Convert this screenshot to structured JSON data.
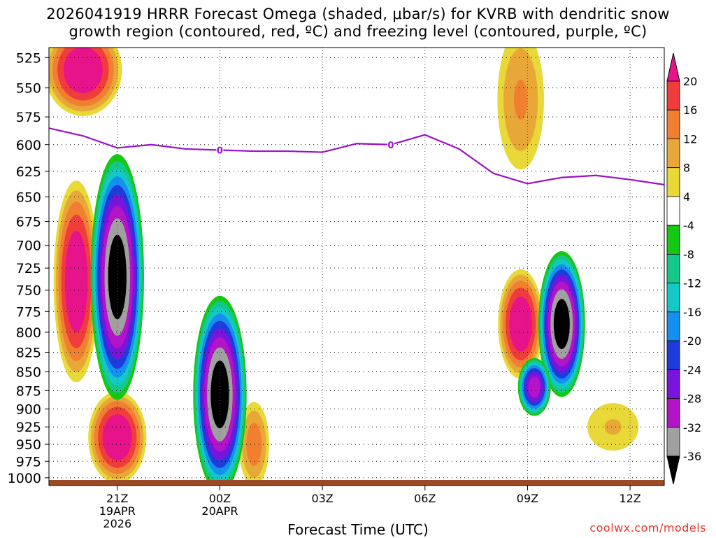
{
  "title": {
    "line1": "2026041919 HRRR Forecast Omega (shaded, μbar/s) for KVRB with dendritic snow",
    "line2": "growth region (contoured, red, ºC) and freezing level (contoured, purple, ºC)"
  },
  "credit": "coolwx.com/models",
  "chart_data": {
    "type": "heatmap",
    "xlabel": "Forecast Time (UTC)",
    "x_ticks": [
      {
        "label": "21Z",
        "sub": [
          "19APR",
          "2026"
        ],
        "hour": 0
      },
      {
        "label": "00Z",
        "sub": [
          "20APR"
        ],
        "hour": 3
      },
      {
        "label": "03Z",
        "sub": [],
        "hour": 6
      },
      {
        "label": "06Z",
        "sub": [],
        "hour": 9
      },
      {
        "label": "09Z",
        "sub": [],
        "hour": 12
      },
      {
        "label": "12Z",
        "sub": [],
        "hour": 15
      }
    ],
    "x_range_hours": [
      -2,
      16
    ],
    "ylabel": "",
    "y_ticks": [
      525,
      550,
      575,
      600,
      625,
      650,
      675,
      700,
      725,
      750,
      775,
      800,
      825,
      850,
      875,
      900,
      925,
      950,
      975,
      1000
    ],
    "ylim": [
      517,
      1012
    ],
    "y_scale": "log-pressure",
    "grid": true,
    "colorbar": {
      "labels": [
        20,
        16,
        12,
        8,
        4,
        -4,
        -8,
        -12,
        -16,
        -20,
        -24,
        -28,
        -32,
        -36
      ],
      "levels": [
        {
          "range": ">20",
          "color": "#e6138a"
        },
        {
          "range": "16 to 20",
          "color": "#f03c3c"
        },
        {
          "range": "12 to 16",
          "color": "#f08030"
        },
        {
          "range": "8 to 12",
          "color": "#e8a838"
        },
        {
          "range": "4 to 8",
          "color": "#e8d838"
        },
        {
          "range": "-4 to 4",
          "color": "#ffffff"
        },
        {
          "range": "-8 to -4",
          "color": "#14c814"
        },
        {
          "range": "-12 to -8",
          "color": "#14c88c"
        },
        {
          "range": "-16 to -12",
          "color": "#14c8c8"
        },
        {
          "range": "-20 to -16",
          "color": "#1490f0"
        },
        {
          "range": "-24 to -20",
          "color": "#1e3cdc"
        },
        {
          "range": "-28 to -24",
          "color": "#7814dc"
        },
        {
          "range": "-32 to -28",
          "color": "#b414c8"
        },
        {
          "range": "-36 to -32",
          "color": "#a0a0a0"
        },
        {
          "range": "<-36",
          "color": "#000000"
        }
      ]
    },
    "freezing_level": {
      "value_label": "0",
      "color": "#9b10c8",
      "points": [
        [
          -2.0,
          585
        ],
        [
          -1.0,
          592
        ],
        [
          0.0,
          603
        ],
        [
          1.0,
          600
        ],
        [
          2.0,
          604
        ],
        [
          3.0,
          605
        ],
        [
          4.0,
          606
        ],
        [
          5.0,
          606
        ],
        [
          6.0,
          607
        ],
        [
          7.0,
          599
        ],
        [
          8.0,
          600
        ],
        [
          9.0,
          591
        ],
        [
          10.0,
          604
        ],
        [
          11.0,
          627
        ],
        [
          12.0,
          637
        ],
        [
          13.0,
          631
        ],
        [
          14.0,
          629
        ],
        [
          15.0,
          633
        ],
        [
          16.0,
          638
        ]
      ],
      "label_positions": [
        [
          3.0,
          605
        ],
        [
          8.0,
          600
        ]
      ]
    },
    "omega_features": [
      {
        "kind": "sink",
        "peak": 24,
        "center": [
          -1.0,
          535
        ],
        "rx": 1.2,
        "ry": 40
      },
      {
        "kind": "sink",
        "peak": 24,
        "center": [
          -1.2,
          740
        ],
        "rx": 0.7,
        "ry": 120
      },
      {
        "kind": "sink",
        "peak": 24,
        "center": [
          0.0,
          940
        ],
        "rx": 0.9,
        "ry": 70
      },
      {
        "kind": "sink",
        "peak": 14,
        "center": [
          4.0,
          950
        ],
        "rx": 0.5,
        "ry": 70
      },
      {
        "kind": "sink",
        "peak": 24,
        "center": [
          11.8,
          790
        ],
        "rx": 0.7,
        "ry": 70
      },
      {
        "kind": "sink",
        "peak": 12,
        "center": [
          11.8,
          560
        ],
        "rx": 0.8,
        "ry": 70
      },
      {
        "kind": "sink",
        "peak": 8,
        "center": [
          14.5,
          925
        ],
        "rx": 1.0,
        "ry": 45
      },
      {
        "kind": "rise",
        "peak": -38,
        "center": [
          0.0,
          735
        ],
        "rx": 0.8,
        "ry": 140
      },
      {
        "kind": "rise",
        "peak": -38,
        "center": [
          3.0,
          880
        ],
        "rx": 0.8,
        "ry": 135
      },
      {
        "kind": "rise",
        "peak": -38,
        "center": [
          13.0,
          790
        ],
        "rx": 0.7,
        "ry": 90
      },
      {
        "kind": "rise",
        "peak": -30,
        "center": [
          12.2,
          870
        ],
        "rx": 0.5,
        "ry": 40
      }
    ]
  }
}
